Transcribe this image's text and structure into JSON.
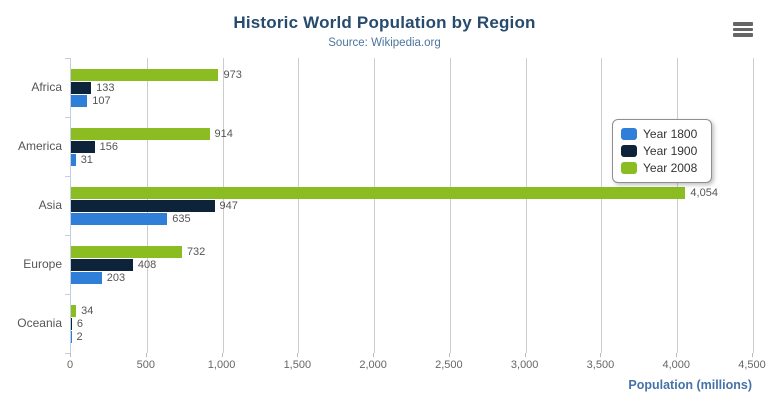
{
  "header": {
    "title": "Historic World Population by Region",
    "subtitle": "Source: Wikipedia.org"
  },
  "icons": {
    "menu": "hamburger-icon"
  },
  "colors": {
    "year_1800": "#2f7ed8",
    "year_1900": "#0d233a",
    "year_2008": "#8bbc21",
    "title_text": "#274b6d",
    "subtitle_text": "#4d759e",
    "axis_title_text": "#4572a7",
    "axis_line": "#c0d0e0",
    "gridline": "#cccccc",
    "label_text": "#555555"
  },
  "legend": {
    "position": "right-top-floating",
    "items": [
      {
        "label": "Year 1800",
        "color": "#2f7ed8"
      },
      {
        "label": "Year 1900",
        "color": "#0d233a"
      },
      {
        "label": "Year 2008",
        "color": "#8bbc21"
      }
    ]
  },
  "chart_data": {
    "type": "bar",
    "orientation": "horizontal",
    "title": "Historic World Population by Region",
    "subtitle": "Source: Wikipedia.org",
    "categories": [
      "Africa",
      "America",
      "Asia",
      "Europe",
      "Oceania"
    ],
    "series": [
      {
        "name": "Year 1800",
        "color": "#2f7ed8",
        "values": [
          107,
          31,
          635,
          203,
          2
        ]
      },
      {
        "name": "Year 1900",
        "color": "#0d233a",
        "values": [
          133,
          156,
          947,
          408,
          6
        ]
      },
      {
        "name": "Year 2008",
        "color": "#8bbc21",
        "values": [
          973,
          914,
          4054,
          732,
          34
        ]
      }
    ],
    "bar_order_top_to_bottom": [
      "Year 2008",
      "Year 1900",
      "Year 1800"
    ],
    "data_labels_visible": true,
    "xlabel": "Population (millions)",
    "ylabel": "",
    "axis": {
      "min": 0,
      "max": 4500,
      "tick_interval": 500,
      "tick_labels": [
        "0",
        "500",
        "1,000",
        "1,500",
        "2,000",
        "2,500",
        "3,000",
        "3,500",
        "4,000",
        "4,500"
      ]
    },
    "grid": "vertical-only",
    "legend_position": "right-top-floating"
  }
}
